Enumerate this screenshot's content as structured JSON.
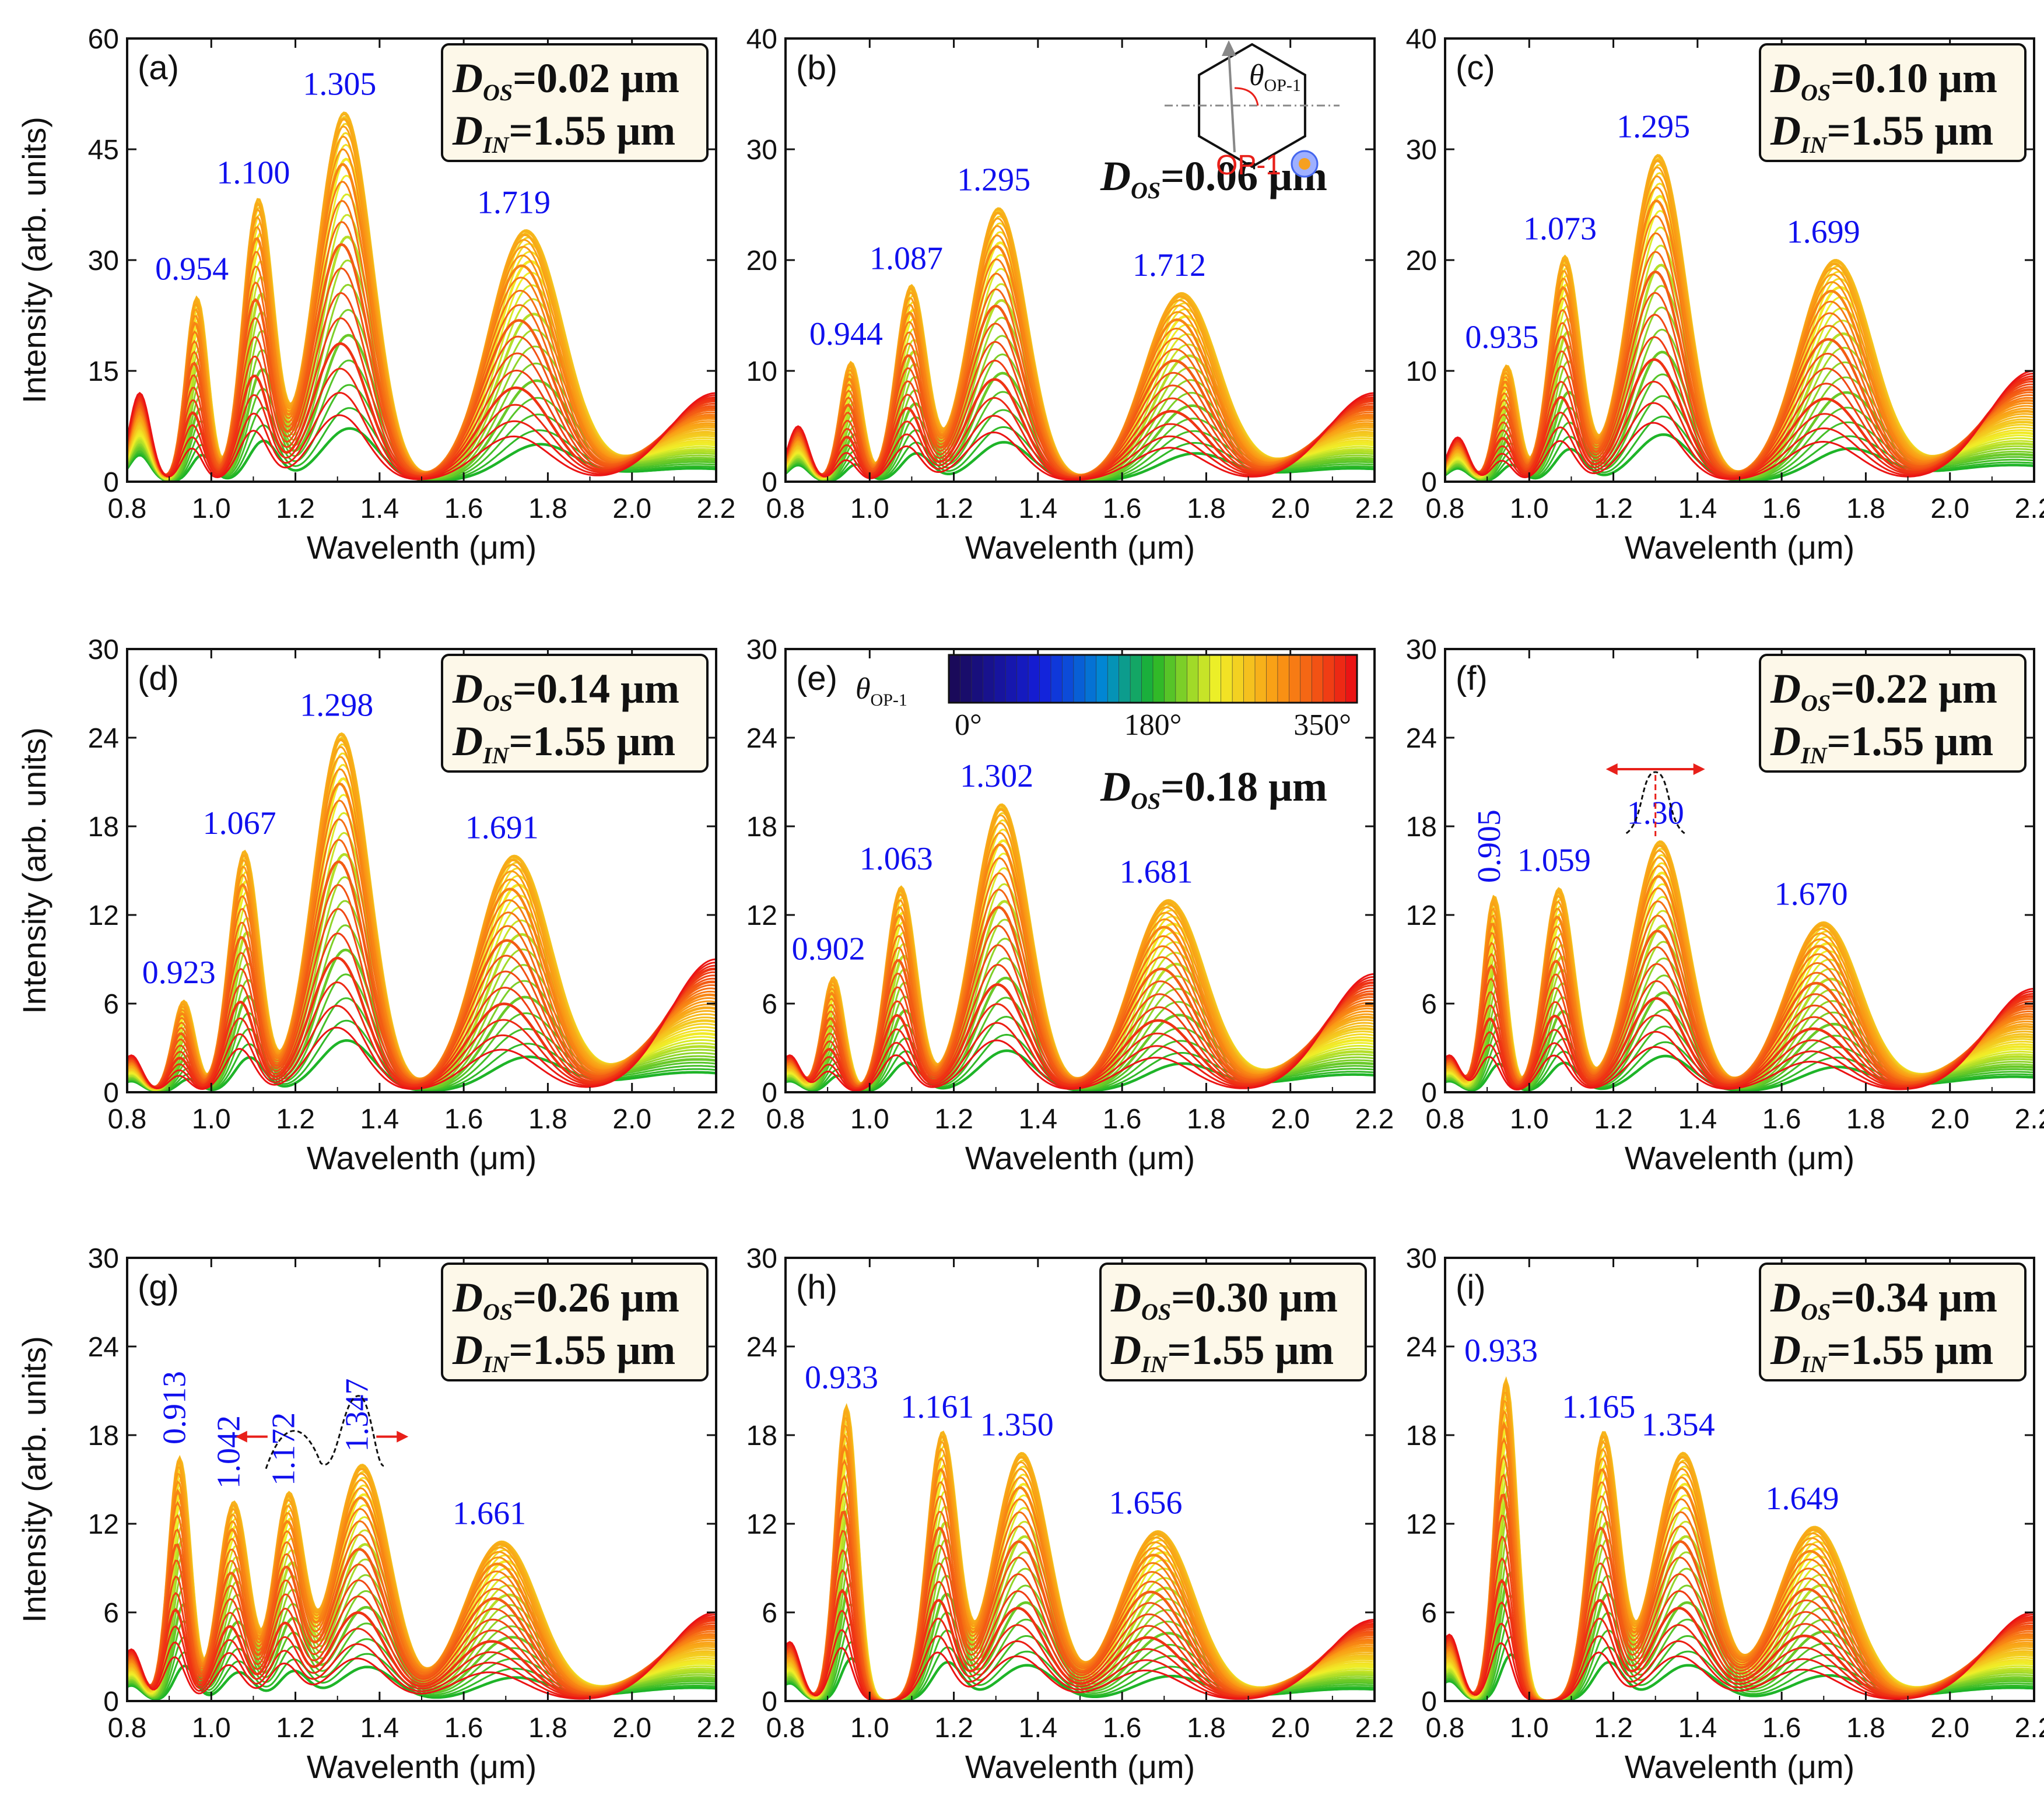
{
  "chart_data": [
    {
      "type": "line",
      "panel": "(a)",
      "title": "",
      "xlabel": "Wavelenth (μm)",
      "ylabel": "Intensity (arb. units)",
      "xlim": [
        0.8,
        2.2
      ],
      "ylim": [
        0,
        60
      ],
      "yticks": [
        0,
        15,
        30,
        45,
        60
      ],
      "xticks": [
        0.8,
        1.0,
        1.2,
        1.4,
        1.6,
        1.8,
        2.0,
        2.2
      ],
      "d_os": "0.02",
      "d_in": "1.55",
      "unit": "μm",
      "boxed": true,
      "peaks": [
        {
          "x": 0.954,
          "y": 25,
          "label": "0.954"
        },
        {
          "x": 1.1,
          "y": 38,
          "label": "1.100"
        },
        {
          "x": 1.305,
          "y": 50,
          "label": "1.305"
        },
        {
          "x": 1.719,
          "y": 34,
          "label": "1.719"
        }
      ],
      "valleys": [
        0.9,
        1.02,
        1.18,
        1.5,
        1.95
      ],
      "tail": {
        "x": 2.2,
        "y": 12
      },
      "first_peak": {
        "x": 0.83,
        "y": 12
      }
    },
    {
      "type": "line",
      "panel": "(b)",
      "title": "",
      "xlabel": "Wavelenth (μm)",
      "ylabel": "",
      "xlim": [
        0.8,
        2.2
      ],
      "ylim": [
        0,
        40
      ],
      "yticks": [
        0,
        10,
        20,
        30,
        40
      ],
      "xticks": [
        0.8,
        1.0,
        1.2,
        1.4,
        1.6,
        1.8,
        2.0,
        2.2
      ],
      "d_os": "0.06",
      "d_in": "",
      "unit": "μm",
      "boxed": false,
      "peaks": [
        {
          "x": 0.944,
          "y": 10.8,
          "label": "0.944"
        },
        {
          "x": 1.087,
          "y": 17.6,
          "label": "1.087"
        },
        {
          "x": 1.295,
          "y": 24.7,
          "label": "1.295"
        },
        {
          "x": 1.712,
          "y": 17.0,
          "label": "1.712"
        }
      ],
      "valleys": [
        0.89,
        1.01,
        1.16,
        1.5,
        1.95
      ],
      "tail": {
        "x": 2.2,
        "y": 8
      },
      "first_peak": {
        "x": 0.83,
        "y": 5
      },
      "inset": {
        "theta_label": "θ",
        "theta_sub": "OP-1",
        "op_label": "OP-1"
      }
    },
    {
      "type": "line",
      "panel": "(c)",
      "title": "",
      "xlabel": "Wavelenth (μm)",
      "ylabel": "",
      "xlim": [
        0.8,
        2.2
      ],
      "ylim": [
        0,
        40
      ],
      "yticks": [
        0,
        10,
        20,
        30,
        40
      ],
      "xticks": [
        0.8,
        1.0,
        1.2,
        1.4,
        1.6,
        1.8,
        2.0,
        2.2
      ],
      "d_os": "0.10",
      "d_in": "1.55",
      "unit": "μm",
      "boxed": true,
      "peaks": [
        {
          "x": 0.935,
          "y": 10.5,
          "label": "0.935"
        },
        {
          "x": 1.073,
          "y": 20.3,
          "label": "1.073"
        },
        {
          "x": 1.295,
          "y": 29.5,
          "label": "1.295"
        },
        {
          "x": 1.699,
          "y": 20.0,
          "label": "1.699"
        }
      ],
      "valleys": [
        0.88,
        1.0,
        1.16,
        1.5,
        1.95
      ],
      "tail": {
        "x": 2.2,
        "y": 10
      },
      "first_peak": {
        "x": 0.83,
        "y": 4
      }
    },
    {
      "type": "line",
      "panel": "(d)",
      "title": "",
      "xlabel": "Wavelenth (μm)",
      "ylabel": "Intensity (arb. units)",
      "xlim": [
        0.8,
        2.2
      ],
      "ylim": [
        0,
        30
      ],
      "yticks": [
        0,
        6,
        12,
        18,
        24,
        30
      ],
      "xticks": [
        0.8,
        1.0,
        1.2,
        1.4,
        1.6,
        1.8,
        2.0,
        2.2
      ],
      "d_os": "0.14",
      "d_in": "1.55",
      "unit": "μm",
      "boxed": true,
      "peaks": [
        {
          "x": 0.923,
          "y": 6.2,
          "label": "0.923"
        },
        {
          "x": 1.067,
          "y": 16.3,
          "label": "1.067"
        },
        {
          "x": 1.298,
          "y": 24.3,
          "label": "1.298"
        },
        {
          "x": 1.691,
          "y": 16.0,
          "label": "1.691"
        }
      ],
      "valleys": [
        0.86,
        0.99,
        1.15,
        1.5,
        1.95
      ],
      "tail": {
        "x": 2.2,
        "y": 9
      },
      "first_peak": {
        "x": 0.81,
        "y": 2.5
      }
    },
    {
      "type": "line",
      "panel": "(e)",
      "title": "",
      "xlabel": "Wavelenth (μm)",
      "ylabel": "",
      "xlim": [
        0.8,
        2.2
      ],
      "ylim": [
        0,
        30
      ],
      "yticks": [
        0,
        6,
        12,
        18,
        24,
        30
      ],
      "xticks": [
        0.8,
        1.0,
        1.2,
        1.4,
        1.6,
        1.8,
        2.0,
        2.2
      ],
      "d_os": "0.18",
      "d_in": "",
      "unit": "μm",
      "boxed": false,
      "peaks": [
        {
          "x": 0.902,
          "y": 7.8,
          "label": "0.902"
        },
        {
          "x": 1.063,
          "y": 13.9,
          "label": "1.063"
        },
        {
          "x": 1.302,
          "y": 19.5,
          "label": "1.302"
        },
        {
          "x": 1.681,
          "y": 13.0,
          "label": "1.681"
        }
      ],
      "valleys": [
        0.85,
        0.98,
        1.14,
        1.5,
        1.95
      ],
      "tail": {
        "x": 2.2,
        "y": 8
      },
      "first_peak": {
        "x": 0.81,
        "y": 2.5
      },
      "colorbar": {
        "symbol": "θ",
        "sub": "OP-1",
        "ticks": [
          "0°",
          "180°",
          "350°"
        ]
      }
    },
    {
      "type": "line",
      "panel": "(f)",
      "title": "",
      "xlabel": "Wavelenth (μm)",
      "ylabel": "",
      "xlim": [
        0.8,
        2.2
      ],
      "ylim": [
        0,
        30
      ],
      "yticks": [
        0,
        6,
        12,
        18,
        24,
        30
      ],
      "xticks": [
        0.8,
        1.0,
        1.2,
        1.4,
        1.6,
        1.8,
        2.0,
        2.2
      ],
      "d_os": "0.22",
      "d_in": "1.55",
      "unit": "μm",
      "boxed": true,
      "peaks": [
        {
          "x": 0.905,
          "y": 13.3,
          "label": "0.905"
        },
        {
          "x": 1.059,
          "y": 13.8,
          "label": "1.059"
        },
        {
          "x": 1.3,
          "y": 17.0,
          "label": "1.30"
        },
        {
          "x": 1.67,
          "y": 11.5,
          "label": "1.670"
        }
      ],
      "valleys": [
        0.84,
        0.98,
        1.13,
        1.5,
        1.95
      ],
      "tail": {
        "x": 2.2,
        "y": 7
      },
      "first_peak": {
        "x": 0.81,
        "y": 2.5
      },
      "rotated_labels": [
        "0.905"
      ]
    },
    {
      "type": "line",
      "panel": "(g)",
      "title": "",
      "xlabel": "Wavelenth (μm)",
      "ylabel": "Intensity (arb. units)",
      "xlim": [
        0.8,
        2.2
      ],
      "ylim": [
        0,
        30
      ],
      "yticks": [
        0,
        6,
        12,
        18,
        24,
        30
      ],
      "xticks": [
        0.8,
        1.0,
        1.2,
        1.4,
        1.6,
        1.8,
        2.0,
        2.2
      ],
      "d_os": "0.26",
      "d_in": "1.55",
      "unit": "μm",
      "boxed": true,
      "peaks": [
        {
          "x": 0.913,
          "y": 16.5,
          "label": "0.913"
        },
        {
          "x": 1.042,
          "y": 13.5,
          "label": "1.042"
        },
        {
          "x": 1.172,
          "y": 13.7,
          "label": "1.172"
        },
        {
          "x": 1.347,
          "y": 16.0,
          "label": "1.347"
        },
        {
          "x": 1.661,
          "y": 10.8,
          "label": "1.661"
        }
      ],
      "valleys": [
        0.82,
        0.98,
        1.1,
        1.5,
        1.95
      ],
      "tail": {
        "x": 2.2,
        "y": 6
      },
      "first_peak": {
        "x": 0.81,
        "y": 3.5
      },
      "rotated_labels": [
        "0.913",
        "1.042",
        "1.172",
        "1.347"
      ]
    },
    {
      "type": "line",
      "panel": "(h)",
      "title": "",
      "xlabel": "Wavelenth (μm)",
      "ylabel": "",
      "xlim": [
        0.8,
        2.2
      ],
      "ylim": [
        0,
        30
      ],
      "yticks": [
        0,
        6,
        12,
        18,
        24,
        30
      ],
      "xticks": [
        0.8,
        1.0,
        1.2,
        1.4,
        1.6,
        1.8,
        2.0,
        2.2
      ],
      "d_os": "0.30",
      "d_in": "1.55",
      "unit": "μm",
      "boxed": true,
      "peaks": [
        {
          "x": 0.933,
          "y": 20.0,
          "label": "0.933"
        },
        {
          "x": 1.161,
          "y": 18.0,
          "label": "1.161"
        },
        {
          "x": 1.35,
          "y": 16.8,
          "label": "1.350"
        },
        {
          "x": 1.656,
          "y": 11.5,
          "label": "1.656"
        }
      ],
      "valleys": [
        0.82,
        1.07,
        1.25,
        1.5,
        1.95
      ],
      "tail": {
        "x": 2.2,
        "y": 5.5
      },
      "first_peak": {
        "x": 0.81,
        "y": 4
      }
    },
    {
      "type": "line",
      "panel": "(i)",
      "title": "",
      "xlabel": "Wavelenth (μm)",
      "ylabel": "",
      "xlim": [
        0.8,
        2.2
      ],
      "ylim": [
        0,
        30
      ],
      "yticks": [
        0,
        6,
        12,
        18,
        24,
        30
      ],
      "xticks": [
        0.8,
        1.0,
        1.2,
        1.4,
        1.6,
        1.8,
        2.0,
        2.2
      ],
      "d_os": "0.34",
      "d_in": "1.55",
      "unit": "μm",
      "boxed": true,
      "peaks": [
        {
          "x": 0.933,
          "y": 21.8,
          "label": "0.933"
        },
        {
          "x": 1.165,
          "y": 18.0,
          "label": "1.165"
        },
        {
          "x": 1.354,
          "y": 16.8,
          "label": "1.354"
        },
        {
          "x": 1.649,
          "y": 11.8,
          "label": "1.649"
        }
      ],
      "valleys": [
        0.82,
        1.07,
        1.25,
        1.5,
        1.95
      ],
      "tail": {
        "x": 2.2,
        "y": 6
      },
      "first_peak": {
        "x": 0.81,
        "y": 4.5
      }
    }
  ],
  "series_count": 36,
  "series_angles": "0° to 350° in 10° steps (θOP-1)",
  "colors": {
    "peak_label": "#1010ee",
    "box_fill": "#fdf8e9",
    "red_arrow": "#e8201a",
    "axis": "#111111"
  }
}
